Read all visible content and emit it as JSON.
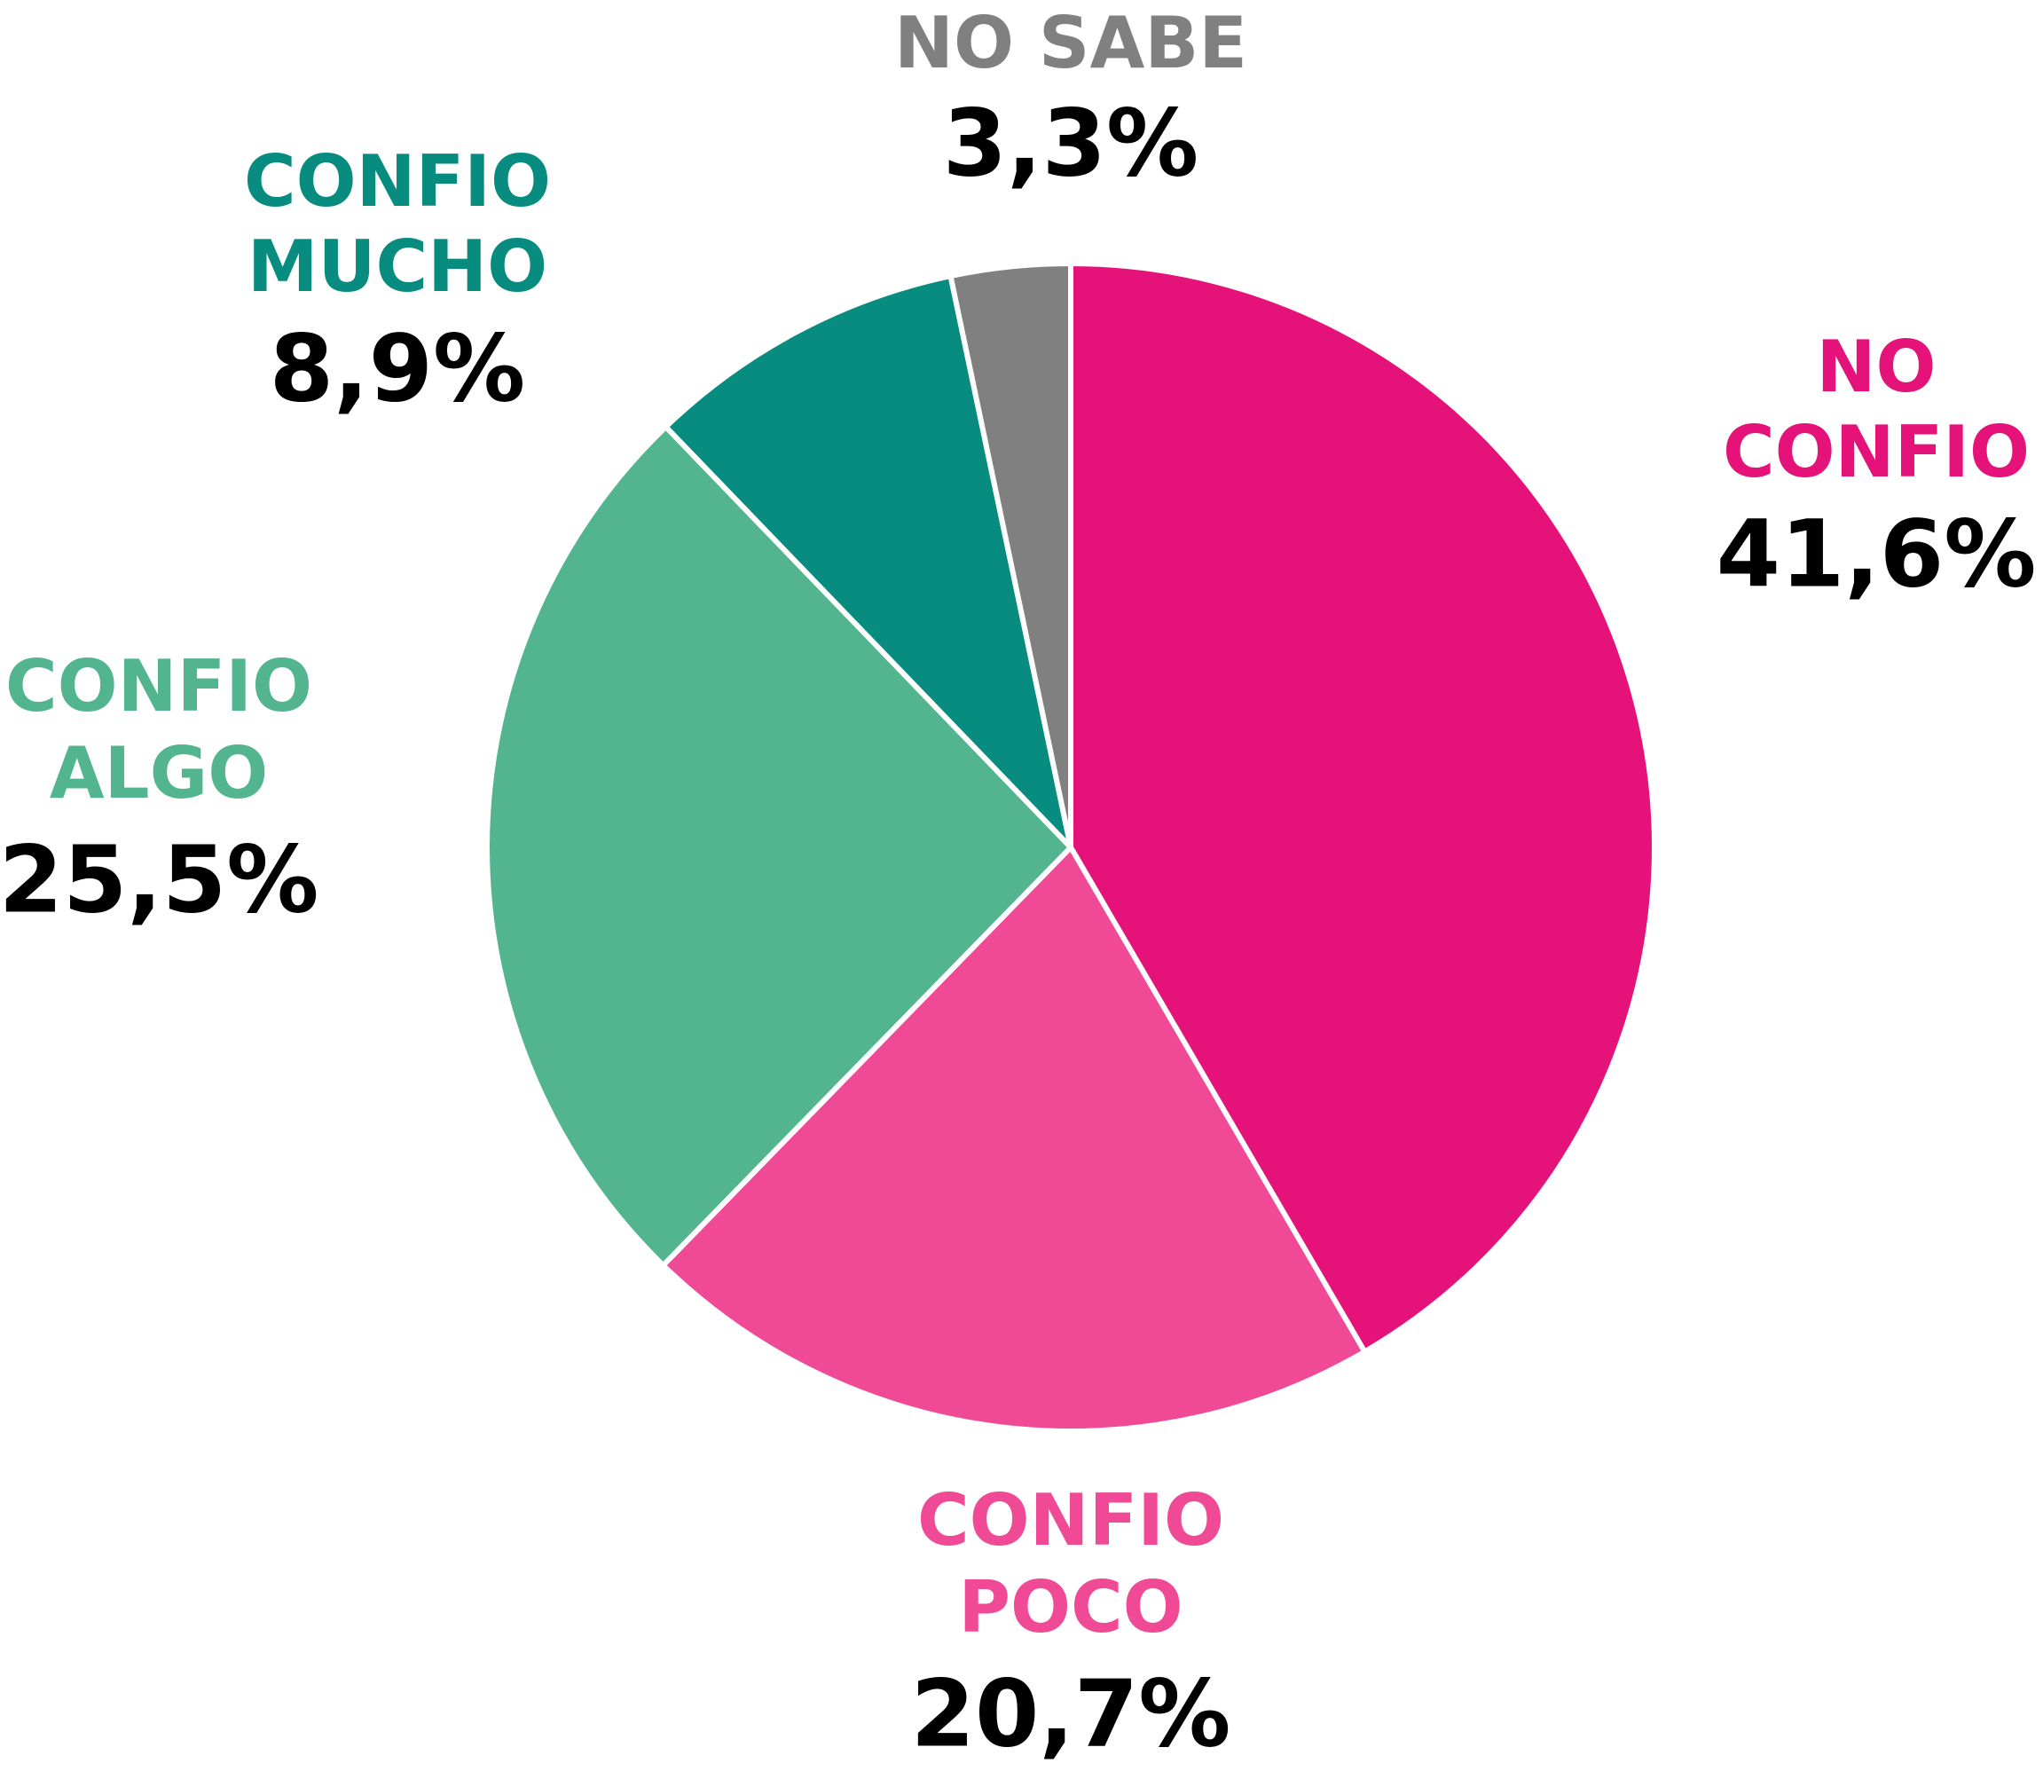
{
  "chart_data": {
    "type": "pie",
    "categories": [
      [
        "NO",
        "CONFIO"
      ],
      [
        "CONFIO",
        "POCO"
      ],
      [
        "CONFIO",
        "ALGO"
      ],
      [
        "CONFIO",
        "MUCHO"
      ],
      [
        "NO SABE"
      ]
    ],
    "values": [
      41.6,
      20.7,
      25.5,
      8.9,
      3.3
    ],
    "value_labels": [
      "41,6%",
      "20,7%",
      "25,5%",
      "8,9%",
      "3,3%"
    ],
    "colors": [
      "#e5127a",
      "#f04a96",
      "#52b58f",
      "#078c7f",
      "#808080"
    ]
  }
}
